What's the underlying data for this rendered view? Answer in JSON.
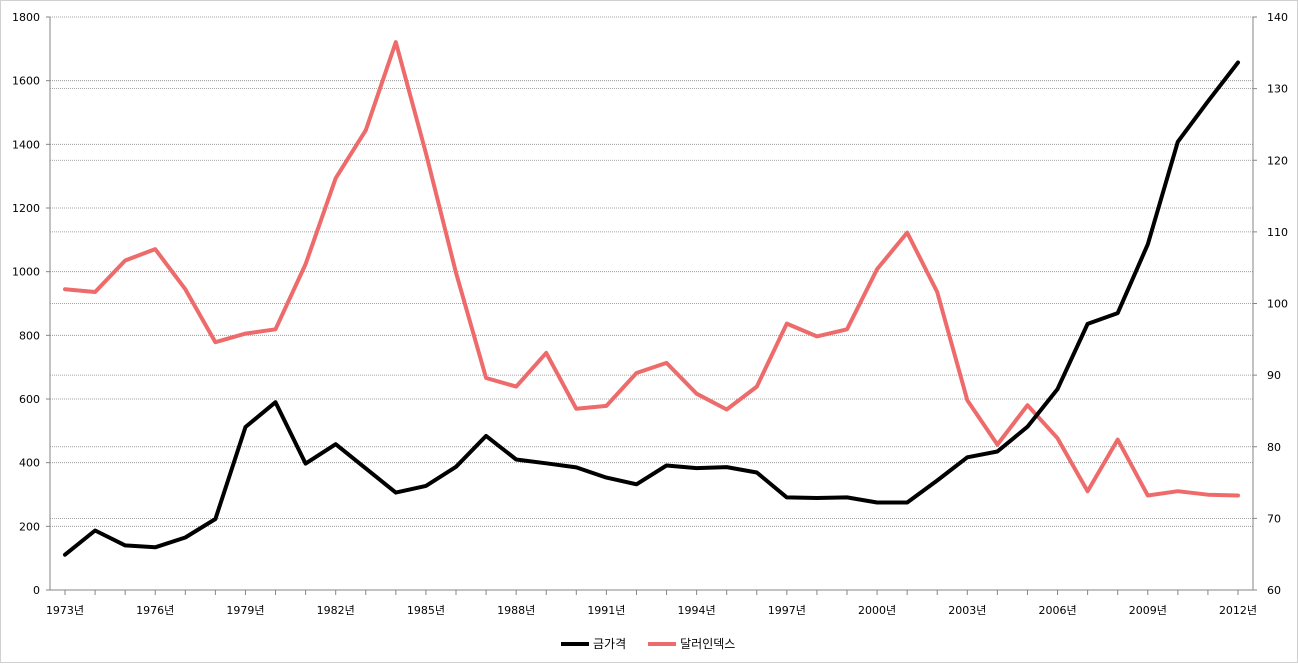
{
  "chart_data": {
    "type": "line",
    "title": "",
    "x": [
      1973,
      1974,
      1975,
      1976,
      1977,
      1978,
      1979,
      1980,
      1981,
      1982,
      1983,
      1984,
      1985,
      1986,
      1987,
      1988,
      1989,
      1990,
      1991,
      1992,
      1993,
      1994,
      1995,
      1996,
      1997,
      1998,
      1999,
      2000,
      2001,
      2002,
      2003,
      2004,
      2005,
      2006,
      2007,
      2008,
      2009,
      2010,
      2011,
      2012
    ],
    "x_tick_labels": [
      "1973년",
      "1976년",
      "1979년",
      "1982년",
      "1985년",
      "1988년",
      "1991년",
      "1994년",
      "1997년",
      "2000년",
      "2003년",
      "2006년",
      "2009년",
      "2012년"
    ],
    "x_tick_years": [
      1973,
      1976,
      1979,
      1982,
      1985,
      1988,
      1991,
      1994,
      1997,
      2000,
      2003,
      2006,
      2009,
      2012
    ],
    "y_left": {
      "lim": [
        0,
        1800
      ],
      "ticks": [
        0,
        200,
        400,
        600,
        800,
        1000,
        1200,
        1400,
        1600,
        1800
      ]
    },
    "y_right": {
      "lim": [
        60,
        140
      ],
      "ticks": [
        60,
        70,
        80,
        90,
        100,
        110,
        120,
        130,
        140
      ]
    },
    "grid": true,
    "legend_position": "bottom",
    "series": [
      {
        "name": "금가격",
        "axis": "left",
        "color": "#000000",
        "values": [
          111,
          187,
          140,
          134,
          165,
          223,
          512,
          590,
          397,
          458,
          382,
          306,
          327,
          387,
          484,
          410,
          398,
          385,
          353,
          332,
          391,
          383,
          386,
          369,
          291,
          289,
          291,
          275,
          275,
          344,
          417,
          435,
          513,
          631,
          836,
          870,
          1086,
          1408,
          1535,
          1657
        ]
      },
      {
        "name": "달러인덱스",
        "axis": "right",
        "color": "#ee6b6b",
        "values": [
          102.0,
          101.6,
          106.0,
          107.6,
          102.0,
          94.6,
          95.8,
          96.4,
          105.5,
          117.5,
          124.2,
          136.5,
          121.0,
          104.3,
          89.6,
          88.4,
          93.1,
          85.3,
          85.7,
          90.3,
          91.7,
          87.4,
          85.2,
          88.4,
          97.2,
          95.4,
          96.4,
          104.8,
          109.9,
          101.6,
          86.5,
          80.3,
          85.8,
          81.2,
          73.8,
          81.0,
          73.2,
          73.8,
          73.3,
          73.2
        ]
      }
    ]
  }
}
